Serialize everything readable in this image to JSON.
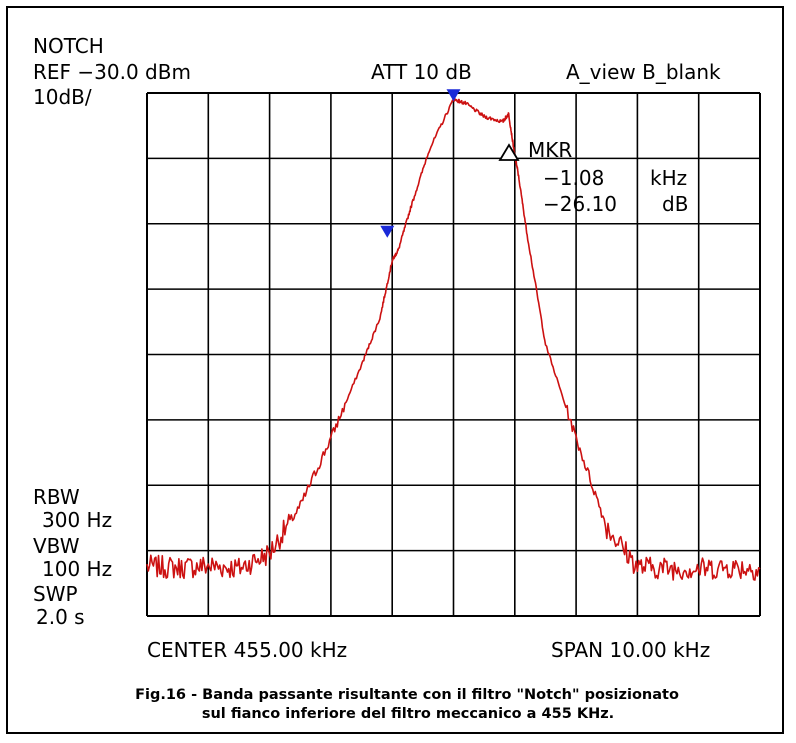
{
  "screen": {
    "mode": "NOTCH",
    "ref": "REF −30.0 dBm",
    "scale": "10dB/",
    "att": "ATT 10 dB",
    "trace_mode": "A_view B_blank",
    "marker_label": "MKR",
    "marker_freq_value": "−1.08",
    "marker_freq_unit": "kHz",
    "marker_level_value": "−26.10",
    "marker_level_unit": "dB",
    "rbw_label": "RBW",
    "rbw_value": "300 Hz",
    "vbw_label": "VBW",
    "vbw_value": "100 Hz",
    "swp_label": "SWP",
    "swp_value": "2.0 s",
    "center": "CENTER 455.00 kHz",
    "span": "SPAN 10.00 kHz"
  },
  "caption": {
    "fig": "Fig.16",
    "line1": " - Banda passante  risultante con il filtro  \"Notch\" posizionato",
    "line2": "sul fianco inferiore  del filtro meccanico a 455 KHz."
  },
  "colors": {
    "trace": "#cc1111",
    "marker": "#1a2ad8",
    "grid": "#000000"
  },
  "chart_data": {
    "type": "line",
    "xlabel": "CENTER 455.00 kHz",
    "x_right_label": "SPAN 10.00 kHz",
    "ylabel": "",
    "xlim": [
      450.0,
      460.0
    ],
    "ylim": [
      -130.0,
      -30.0
    ],
    "grid": true,
    "series": [
      {
        "x": [
          450.0,
          450.5,
          451.0,
          451.5,
          452.0,
          452.5,
          453.0,
          453.5,
          453.8,
          454.0,
          454.1,
          454.3,
          454.6,
          455.0,
          455.2,
          455.5,
          455.8,
          455.9,
          456.0,
          456.05,
          456.2,
          456.5,
          457.0,
          457.5,
          458.0,
          458.5,
          459.0,
          459.5,
          460.0
        ],
        "y": [
          -120.5,
          -120.8,
          -120.4,
          -120.9,
          -118.0,
          -109.0,
          -96.0,
          -82.0,
          -73.0,
          -62.0,
          -60.0,
          -52.0,
          -41.0,
          -31.2,
          -32.0,
          -34.5,
          -35.5,
          -34.0,
          -42.0,
          -45.0,
          -57.0,
          -78.0,
          -96.0,
          -113.0,
          -120.6,
          -120.9,
          -121.0,
          -120.7,
          -121.0
        ]
      }
    ],
    "markers": [
      {
        "x": 455.0,
        "y": -31.2
      },
      {
        "x": 453.92,
        "y": -57.3
      }
    ]
  }
}
